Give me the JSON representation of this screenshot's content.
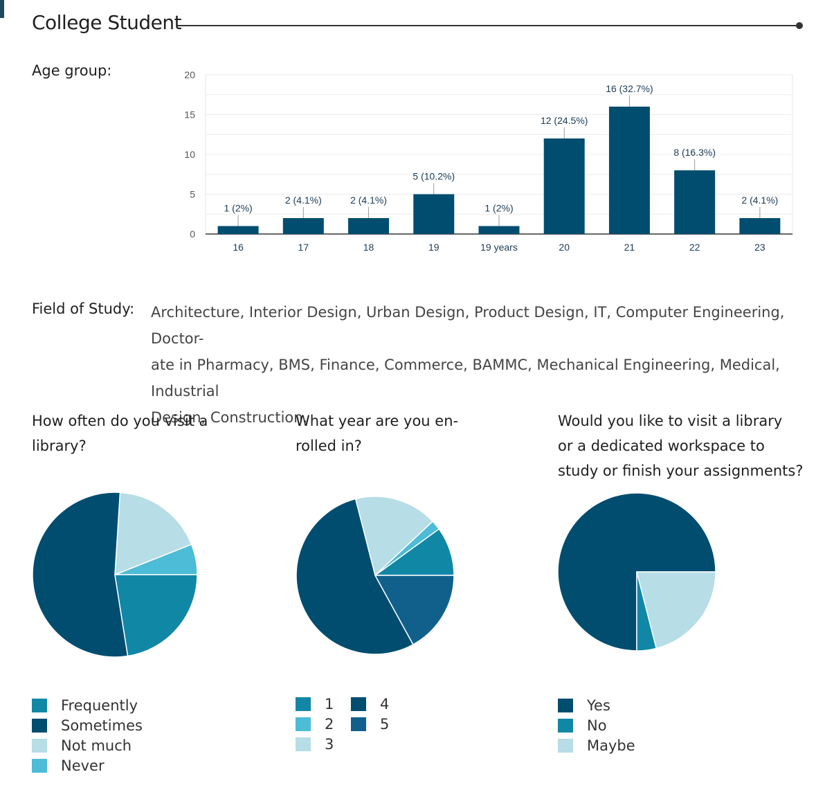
{
  "title": "College Student",
  "age": {
    "label": "Age group:",
    "chart_data": {
      "type": "bar",
      "categories": [
        "16",
        "17",
        "18",
        "19",
        "19 years",
        "20",
        "21",
        "22",
        "23"
      ],
      "values": [
        1,
        2,
        2,
        5,
        1,
        12,
        16,
        8,
        2
      ],
      "data_labels": [
        "1 (2%)",
        "2 (4.1%)",
        "2 (4.1%)",
        "5 (10.2%)",
        "1 (2%)",
        "12 (24.5%)",
        "16 (32.7%)",
        "8 (16.3%)",
        "2 (4.1%)"
      ],
      "yticks": [
        "0",
        "5",
        "10",
        "15",
        "20"
      ],
      "ylim": [
        0,
        20
      ],
      "color": "#004d70",
      "grid": true
    }
  },
  "field_of_study": {
    "label": "Field of Study:",
    "lines": [
      "Architecture, Interior Design, Urban Design, Product Design, IT, Computer Engineering, Doctor-",
      "ate in Pharmacy, BMS, Finance, Commerce, BAMMC, Mechanical Engineering, Medical, Industrial",
      "Design, Construction."
    ]
  },
  "pies": [
    {
      "question": [
        "How often do you visit a",
        "library?"
      ],
      "chart_data": {
        "type": "pie",
        "labels": [
          "Frequently",
          "Sometimes",
          "Not much",
          "Never"
        ],
        "values": [
          22.5,
          53.5,
          18,
          6
        ],
        "colors": [
          "#1187a6",
          "#004d70",
          "#b7dde6",
          "#4dbcd6"
        ],
        "draw_order": [
          3,
          2,
          1,
          0
        ],
        "legend": [
          [
            0,
            1,
            2,
            3
          ]
        ]
      }
    },
    {
      "question": [
        "What year are you en-",
        "rolled in?"
      ],
      "chart_data": {
        "type": "pie",
        "labels": [
          "1",
          "2",
          "3",
          "4",
          "5"
        ],
        "values": [
          10,
          2,
          17,
          54,
          17
        ],
        "colors": [
          "#1187a6",
          "#4dbcd6",
          "#b7dde6",
          "#004d70",
          "#11608c"
        ],
        "draw_order": [
          0,
          1,
          2,
          3,
          4
        ],
        "legend": [
          [
            0,
            1,
            2
          ],
          [
            3,
            4
          ]
        ]
      }
    },
    {
      "question": [
        "Would you like to visit a library",
        "or a dedicated workspace to",
        "study or finish your assignments?"
      ],
      "chart_data": {
        "type": "pie",
        "labels": [
          "Yes",
          "No",
          "Maybe"
        ],
        "values": [
          75,
          4,
          21
        ],
        "colors": [
          "#004d70",
          "#1187a6",
          "#b7dde6"
        ],
        "draw_order": [
          0,
          1,
          2
        ],
        "legend": [
          [
            0,
            1,
            2
          ]
        ]
      }
    }
  ]
}
